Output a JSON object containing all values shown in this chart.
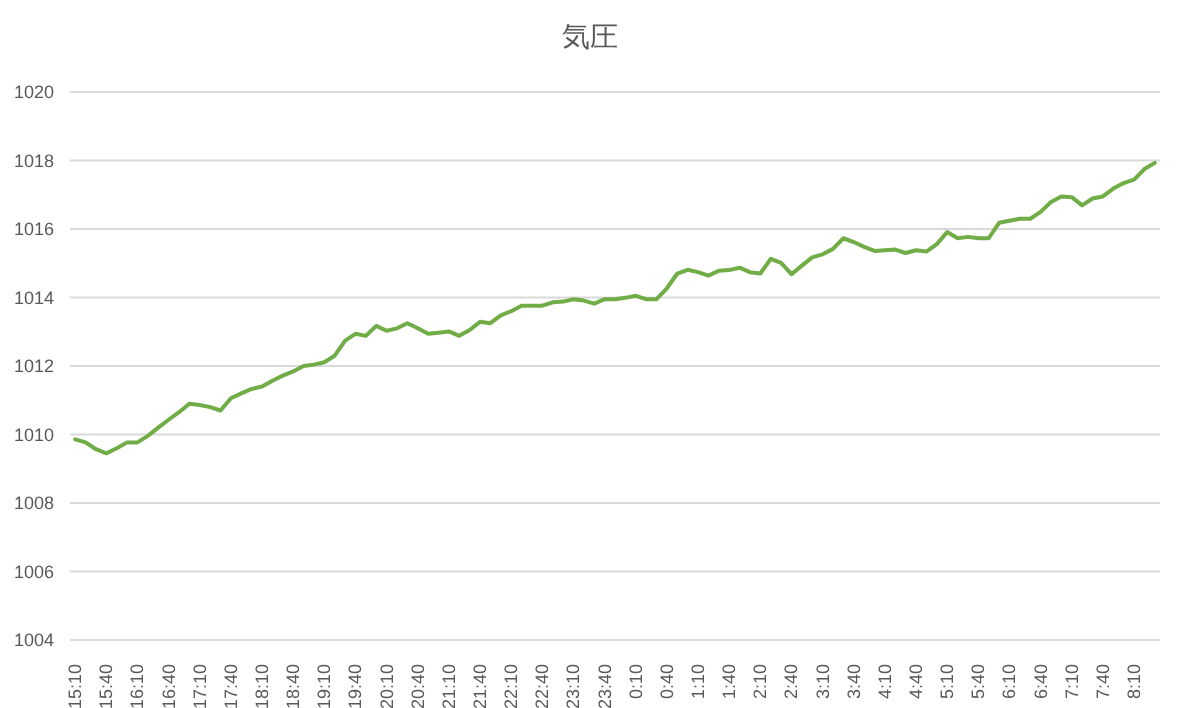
{
  "chart_data": {
    "type": "line",
    "title": "気圧",
    "categories": [
      "15:10",
      null,
      null,
      "15:40",
      null,
      null,
      "16:10",
      null,
      null,
      "16:40",
      null,
      null,
      "17:10",
      null,
      null,
      "17:40",
      null,
      null,
      "18:10",
      null,
      null,
      "18:40",
      null,
      null,
      "19:10",
      null,
      null,
      "19:40",
      null,
      null,
      "20:10",
      null,
      null,
      "20:40",
      null,
      null,
      "21:10",
      null,
      null,
      "21:40",
      null,
      null,
      "22:10",
      null,
      null,
      "22:40",
      null,
      null,
      "23:10",
      null,
      null,
      "23:40",
      null,
      null,
      "0:10",
      null,
      null,
      "0:40",
      null,
      null,
      "1:10",
      null,
      null,
      "1:40",
      null,
      null,
      "2:10",
      null,
      null,
      "2:40",
      null,
      null,
      "3:10",
      null,
      null,
      "3:40",
      null,
      null,
      "4:10",
      null,
      null,
      "4:40",
      null,
      null,
      "5:10",
      null,
      null,
      "5:40",
      null,
      null,
      "6:10",
      null,
      null,
      "6:40",
      null,
      null,
      "7:10",
      null,
      null,
      "7:40",
      null,
      null,
      "8:10",
      null,
      null
    ],
    "series": [
      {
        "color": "#70ad47",
        "values": [
          1009.86,
          1009.77,
          1009.57,
          1009.45,
          1009.6,
          1009.77,
          1009.77,
          1009.96,
          1010.2,
          1010.43,
          1010.65,
          1010.9,
          1010.86,
          1010.8,
          1010.7,
          1011.06,
          1011.2,
          1011.33,
          1011.4,
          1011.57,
          1011.72,
          1011.84,
          1012.0,
          1012.04,
          1012.11,
          1012.3,
          1012.74,
          1012.94,
          1012.88,
          1013.17,
          1013.03,
          1013.1,
          1013.25,
          1013.1,
          1012.94,
          1012.97,
          1013.01,
          1012.88,
          1013.05,
          1013.29,
          1013.25,
          1013.48,
          1013.6,
          1013.76,
          1013.76,
          1013.76,
          1013.86,
          1013.88,
          1013.95,
          1013.91,
          1013.82,
          1013.95,
          1013.95,
          1013.99,
          1014.05,
          1013.95,
          1013.95,
          1014.27,
          1014.7,
          1014.81,
          1014.74,
          1014.64,
          1014.78,
          1014.8,
          1014.87,
          1014.74,
          1014.7,
          1015.13,
          1015.01,
          1014.68,
          1014.93,
          1015.17,
          1015.26,
          1015.42,
          1015.73,
          1015.62,
          1015.48,
          1015.36,
          1015.38,
          1015.4,
          1015.3,
          1015.38,
          1015.34,
          1015.56,
          1015.91,
          1015.73,
          1015.77,
          1015.73,
          1015.73,
          1016.18,
          1016.24,
          1016.3,
          1016.3,
          1016.5,
          1016.79,
          1016.95,
          1016.93,
          1016.69,
          1016.89,
          1016.95,
          1017.18,
          1017.34,
          1017.44,
          1017.75,
          1017.93
        ]
      }
    ],
    "ylim": [
      1004,
      1020
    ],
    "yticks": [
      1004,
      1006,
      1008,
      1010,
      1012,
      1014,
      1016,
      1018,
      1020
    ],
    "grid": "y",
    "legend": false,
    "marker": "none",
    "line_style": "solid"
  }
}
